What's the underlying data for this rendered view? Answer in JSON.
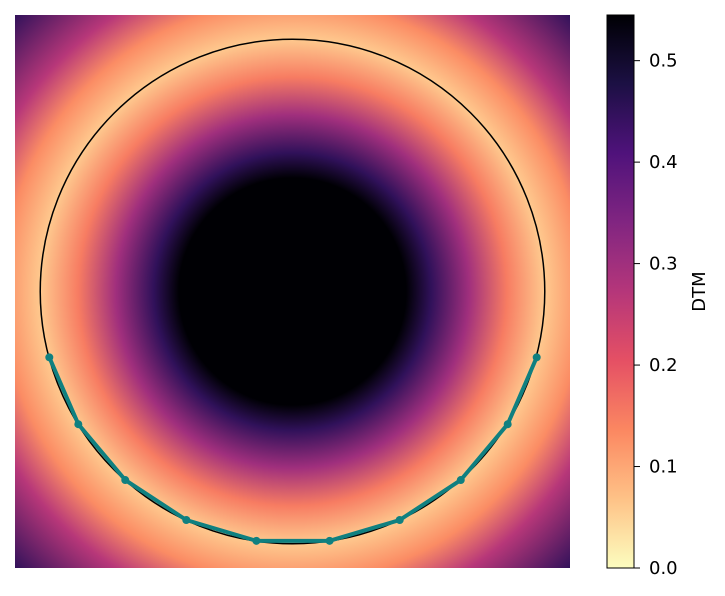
{
  "chart_data": {
    "type": "heatmap",
    "cmap": "magma_r",
    "xlim": [
      -1.1,
      1.1
    ],
    "ylim": [
      -1.1,
      1.1
    ],
    "radial_profile": {
      "r": [
        0,
        0.45,
        0.55,
        0.7,
        0.85,
        1.0,
        1.15,
        1.3,
        1.556
      ],
      "values": [
        0.55,
        0.545,
        0.45,
        0.3,
        0.15,
        0.06,
        0.13,
        0.27,
        0.45
      ]
    },
    "circle": {
      "center": [
        0,
        0
      ],
      "radius": 1,
      "color": "#000000"
    },
    "series": [
      {
        "color": "#108080",
        "x": [
          -0.964,
          -0.849,
          -0.663,
          -0.421,
          -0.143,
          0.147,
          0.425,
          0.667,
          0.853,
          0.968
        ],
        "y": [
          -0.262,
          -0.528,
          -0.75,
          -0.909,
          -0.992,
          -0.992,
          -0.909,
          -0.75,
          -0.528,
          -0.262
        ]
      }
    ],
    "colorbar": {
      "label": "DTM",
      "lim": [
        0,
        0.545
      ],
      "ticks": [
        {
          "value": 0,
          "label": "0.0"
        },
        0.1,
        0.2,
        0.3,
        0.4,
        0.5
      ]
    }
  }
}
